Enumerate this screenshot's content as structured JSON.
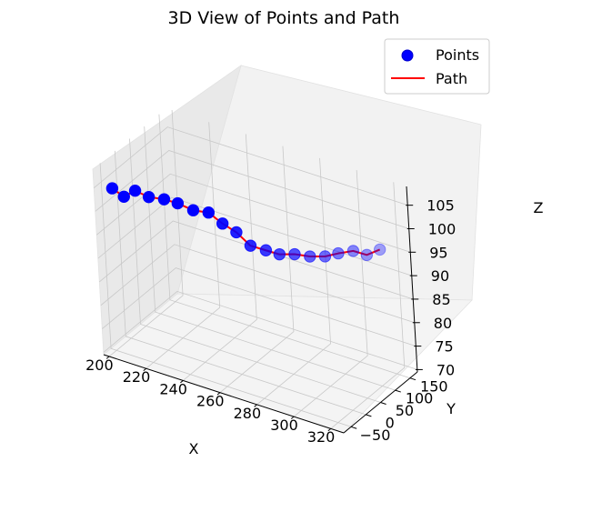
{
  "chart_data": {
    "type": "scatter",
    "projection": "3d",
    "title": "3D View of Points and Path",
    "xlabel": "X",
    "ylabel": "Y",
    "zlabel": "Z",
    "xticks": [
      "200",
      "220",
      "240",
      "260",
      "280",
      "300",
      "320"
    ],
    "yticks": [
      "−50",
      "0",
      "50",
      "100",
      "150"
    ],
    "zticks": [
      "70",
      "75",
      "80",
      "85",
      "90",
      "95",
      "100",
      "105"
    ],
    "xlim": [
      197,
      327
    ],
    "ylim": [
      -75,
      175
    ],
    "zlim": [
      69.5,
      109
    ],
    "grid": true,
    "legend_position": "top-right",
    "colors": {
      "points": "#0000ff",
      "path": "#ff0000"
    },
    "series": [
      {
        "name": "Points",
        "kind": "scatter",
        "x": [
          202,
          207,
          212,
          218,
          225,
          231,
          238,
          245,
          251,
          257,
          263,
          270,
          276,
          283,
          290,
          297,
          303,
          310,
          316,
          322
        ],
        "y": [
          -45,
          -38,
          -30,
          -22,
          -14,
          -6,
          2,
          10,
          18,
          26,
          34,
          42,
          50,
          58,
          66,
          74,
          82,
          90,
          98,
          106
        ],
        "z": [
          104,
          102.5,
          104,
          103,
          103,
          102.5,
          101.5,
          101.5,
          99.5,
          98,
          95.5,
          95,
          94.5,
          95,
          95,
          95.5,
          96.5,
          97.5,
          97,
          98.5
        ]
      },
      {
        "name": "Path",
        "kind": "line",
        "x": [
          202,
          207,
          212,
          218,
          225,
          231,
          238,
          245,
          251,
          257,
          263,
          270,
          276,
          283,
          290,
          297,
          303,
          310,
          316,
          322
        ],
        "y": [
          -45,
          -38,
          -30,
          -22,
          -14,
          -6,
          2,
          10,
          18,
          26,
          34,
          42,
          50,
          58,
          66,
          74,
          82,
          90,
          98,
          106
        ],
        "z": [
          104,
          102.5,
          104,
          103,
          103,
          102.5,
          101.5,
          101.5,
          99.5,
          98,
          95.5,
          95,
          94.5,
          95,
          95,
          95.5,
          96.5,
          97.5,
          97,
          98.5
        ]
      }
    ]
  }
}
